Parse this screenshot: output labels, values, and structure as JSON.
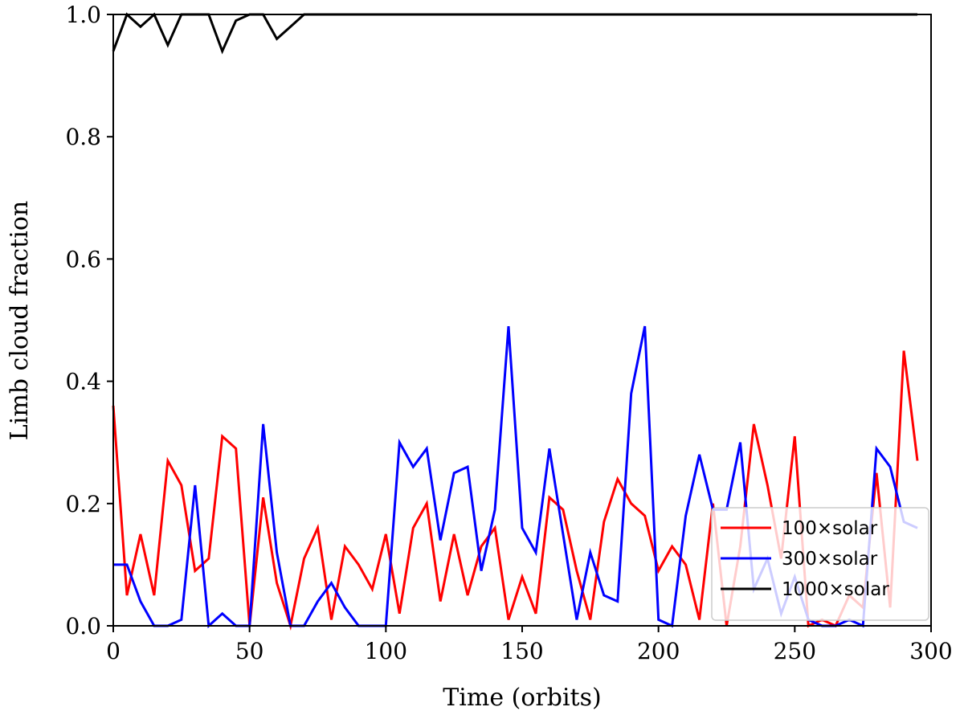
{
  "chart_data": {
    "type": "line",
    "title": "",
    "xlabel": "Time (orbits)",
    "ylabel": "Limb cloud fraction",
    "xlim": [
      0,
      300
    ],
    "ylim": [
      0,
      1.0
    ],
    "xticks": [
      0,
      50,
      100,
      150,
      200,
      250,
      300
    ],
    "xtick_labels": [
      "0",
      "50",
      "100",
      "150",
      "200",
      "250",
      "300"
    ],
    "yticks": [
      0,
      0.2,
      0.4,
      0.6,
      0.8,
      1.0
    ],
    "ytick_labels": [
      "0.0",
      "0.2",
      "0.4",
      "0.6",
      "0.8",
      "1.0"
    ],
    "grid": false,
    "legend_position": "lower-right",
    "x": [
      0,
      5,
      10,
      15,
      20,
      25,
      30,
      35,
      40,
      45,
      50,
      55,
      60,
      65,
      70,
      75,
      80,
      85,
      90,
      95,
      100,
      105,
      110,
      115,
      120,
      125,
      130,
      135,
      140,
      145,
      150,
      155,
      160,
      165,
      170,
      175,
      180,
      185,
      190,
      195,
      200,
      205,
      210,
      215,
      220,
      225,
      230,
      235,
      240,
      245,
      250,
      255,
      260,
      265,
      270,
      275,
      280,
      285,
      290,
      295
    ],
    "series": [
      {
        "name": "100×solar",
        "color": "#ff0000",
        "values": [
          0.36,
          0.05,
          0.15,
          0.05,
          0.27,
          0.23,
          0.09,
          0.11,
          0.31,
          0.29,
          0.0,
          0.21,
          0.07,
          0.0,
          0.11,
          0.16,
          0.01,
          0.13,
          0.1,
          0.06,
          0.15,
          0.02,
          0.16,
          0.2,
          0.04,
          0.15,
          0.05,
          0.13,
          0.16,
          0.01,
          0.08,
          0.02,
          0.21,
          0.19,
          0.09,
          0.01,
          0.17,
          0.24,
          0.2,
          0.18,
          0.09,
          0.13,
          0.1,
          0.01,
          0.2,
          0.0,
          0.13,
          0.33,
          0.23,
          0.11,
          0.31,
          0.0,
          0.01,
          0.0,
          0.05,
          0.03,
          0.25,
          0.03,
          0.45,
          0.27
        ]
      },
      {
        "name": "300×solar",
        "color": "#0000ff",
        "values": [
          0.1,
          0.1,
          0.04,
          0.0,
          0.0,
          0.01,
          0.23,
          0.0,
          0.02,
          0.0,
          0.0,
          0.33,
          0.12,
          0.0,
          0.0,
          0.04,
          0.07,
          0.03,
          0.0,
          0.0,
          0.0,
          0.3,
          0.26,
          0.29,
          0.14,
          0.25,
          0.26,
          0.09,
          0.19,
          0.49,
          0.16,
          0.12,
          0.29,
          0.15,
          0.01,
          0.12,
          0.05,
          0.04,
          0.38,
          0.49,
          0.01,
          0.0,
          0.18,
          0.28,
          0.19,
          0.19,
          0.3,
          0.06,
          0.11,
          0.02,
          0.08,
          0.01,
          0.0,
          0.0,
          0.01,
          0.0,
          0.29,
          0.26,
          0.17,
          0.16
        ]
      },
      {
        "name": "1000×solar",
        "color": "#000000",
        "values": [
          0.94,
          1.0,
          0.98,
          1.0,
          0.95,
          1.0,
          1.0,
          1.0,
          0.94,
          0.99,
          1.0,
          1.0,
          0.96,
          0.98,
          1.0,
          1.0,
          1.0,
          1.0,
          1.0,
          1.0,
          1.0,
          1.0,
          1.0,
          1.0,
          1.0,
          1.0,
          1.0,
          1.0,
          1.0,
          1.0,
          1.0,
          1.0,
          1.0,
          1.0,
          1.0,
          1.0,
          1.0,
          1.0,
          1.0,
          1.0,
          1.0,
          1.0,
          1.0,
          1.0,
          1.0,
          1.0,
          1.0,
          1.0,
          1.0,
          1.0,
          1.0,
          1.0,
          1.0,
          1.0,
          1.0,
          1.0,
          1.0,
          1.0,
          1.0,
          1.0
        ]
      }
    ]
  }
}
